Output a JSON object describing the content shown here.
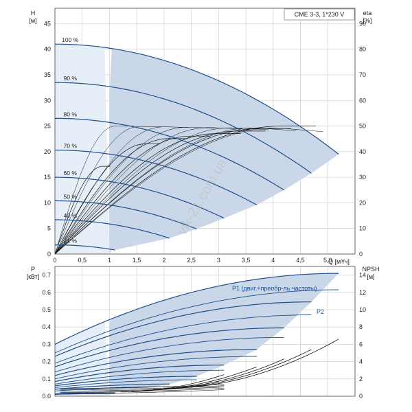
{
  "title_box": "CME 3-3, 1*230 V",
  "watermark": "vlk-21.com.ua",
  "colors": {
    "curve": "#1f4e8c",
    "region": "#c9d7e8",
    "region_light": "#e6eef7",
    "eta": "#111111",
    "grid": "#c8c8c8"
  },
  "chart_data": [
    {
      "type": "line",
      "id": "qh",
      "y_label_left": "H",
      "y_unit_left": "[м]",
      "y_label_right": "eta",
      "y_unit_right": "[%]",
      "x_label": "Q [м³/ч]",
      "xlim": [
        0,
        5.5
      ],
      "ylim_left": [
        0,
        48
      ],
      "ylim_right": [
        0,
        96
      ],
      "x_ticks": [
        "0",
        "0,5",
        "1",
        "1,5",
        "2",
        "2,5",
        "3",
        "3,5",
        "4",
        "4,5",
        "5,0"
      ],
      "x_tick_values": [
        0,
        0.5,
        1,
        1.5,
        2,
        2.5,
        3,
        3.5,
        4,
        4.5,
        5.0
      ],
      "y_ticks_left": [
        "0",
        "5",
        "10",
        "15",
        "20",
        "25",
        "30",
        "35",
        "40",
        "45"
      ],
      "y_ticks_right": [
        "0",
        "10",
        "20",
        "30",
        "40",
        "50",
        "60",
        "70",
        "80",
        "90"
      ],
      "grid": true,
      "series": [
        {
          "name": "100 %",
          "h0": 41.0,
          "qmax": 5.2,
          "hend": 19.5
        },
        {
          "name": "90 %",
          "h0": 33.5,
          "qmax": 4.7,
          "hend": 15.8
        },
        {
          "name": "80 %",
          "h0": 26.5,
          "qmax": 4.2,
          "hend": 12.5
        },
        {
          "name": "70 %",
          "h0": 20.3,
          "qmax": 3.7,
          "hend": 9.6
        },
        {
          "name": "60 %",
          "h0": 15.0,
          "qmax": 3.1,
          "hend": 7.0
        },
        {
          "name": "50 %",
          "h0": 10.4,
          "qmax": 2.6,
          "hend": 4.9
        },
        {
          "name": "40 %",
          "h0": 6.7,
          "qmax": 2.1,
          "hend": 3.1
        },
        {
          "name": "21 %",
          "h0": 1.8,
          "qmax": 1.1,
          "hend": 0.8
        }
      ],
      "eta_max_percent": [
        50,
        50,
        49,
        48,
        47,
        46,
        44,
        35
      ]
    },
    {
      "type": "line",
      "id": "power",
      "y_label_left": "P",
      "y_unit_left": "[кВт]",
      "y_label_right": "NPSH",
      "y_unit_right": "[м]",
      "xlim": [
        0,
        5.5
      ],
      "ylim_left": [
        0,
        0.75
      ],
      "ylim_right": [
        0,
        15
      ],
      "y_ticks_left": [
        "0.0",
        "0.1",
        "0.2",
        "0.3",
        "0.4",
        "0.5",
        "0.6",
        "0.7"
      ],
      "y_ticks_right": [
        "0",
        "2",
        "4",
        "6",
        "8",
        "10",
        "12",
        "14"
      ],
      "grid": true,
      "labels": {
        "p1": "P1 (двиг.+преобр-ль частоты)",
        "p2": "P2"
      },
      "p1_series": [
        {
          "p0": 0.3,
          "qmax": 5.2,
          "pend": 0.71
        },
        {
          "p0": 0.23,
          "qmax": 4.7,
          "pend": 0.545
        },
        {
          "p0": 0.17,
          "qmax": 4.2,
          "pend": 0.395
        },
        {
          "p0": 0.12,
          "qmax": 3.7,
          "pend": 0.27
        },
        {
          "p0": 0.085,
          "qmax": 3.1,
          "pend": 0.18
        },
        {
          "p0": 0.06,
          "qmax": 2.6,
          "pend": 0.115
        },
        {
          "p0": 0.04,
          "qmax": 2.1,
          "pend": 0.07
        },
        {
          "p0": 0.015,
          "qmax": 1.1,
          "pend": 0.02
        }
      ],
      "p2_series": [
        {
          "p0": 0.25,
          "qmax": 5.2,
          "pend": 0.615
        },
        {
          "p0": 0.19,
          "qmax": 4.7,
          "pend": 0.47
        },
        {
          "p0": 0.14,
          "qmax": 4.2,
          "pend": 0.34
        },
        {
          "p0": 0.1,
          "qmax": 3.7,
          "pend": 0.23
        },
        {
          "p0": 0.07,
          "qmax": 3.1,
          "pend": 0.15
        },
        {
          "p0": 0.05,
          "qmax": 2.6,
          "pend": 0.095
        },
        {
          "p0": 0.03,
          "qmax": 2.1,
          "pend": 0.055
        },
        {
          "p0": 0.01,
          "qmax": 1.1,
          "pend": 0.015
        }
      ],
      "npsh_series": [
        {
          "q_start": 2.0,
          "q_end": 5.2,
          "n_start": 0.9,
          "n_end": 6.6
        },
        {
          "q_start": 1.8,
          "q_end": 4.7,
          "n_start": 0.8,
          "n_end": 5.4
        },
        {
          "q_start": 1.6,
          "q_end": 4.2,
          "n_start": 0.7,
          "n_end": 4.3
        },
        {
          "q_start": 1.4,
          "q_end": 3.7,
          "n_start": 0.6,
          "n_end": 3.4
        },
        {
          "q_start": 1.2,
          "q_end": 3.1,
          "n_start": 0.5,
          "n_end": 2.5
        }
      ]
    }
  ]
}
